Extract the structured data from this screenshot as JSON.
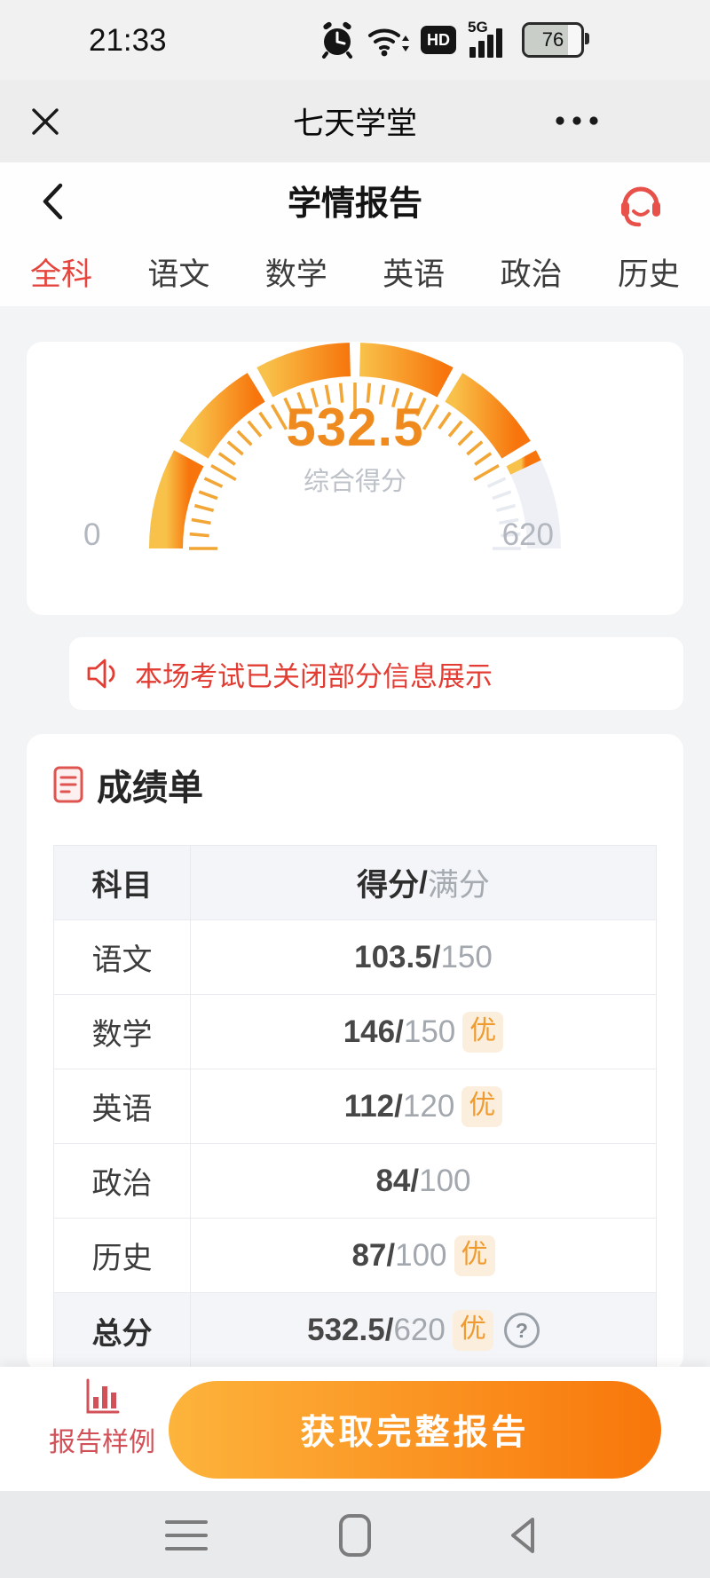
{
  "status_bar": {
    "time": "21:33",
    "hd": "HD",
    "network": "5G",
    "battery": "76"
  },
  "wechat_bar": {
    "title": "七天学堂"
  },
  "app_header": {
    "title": "学情报告"
  },
  "tabs": {
    "items": [
      {
        "label": "全科",
        "active": true
      },
      {
        "label": "语文",
        "active": false
      },
      {
        "label": "数学",
        "active": false
      },
      {
        "label": "英语",
        "active": false
      },
      {
        "label": "政治",
        "active": false
      },
      {
        "label": "历史",
        "active": false
      }
    ]
  },
  "chart_data": {
    "type": "gauge",
    "value": 532.5,
    "min": 0,
    "max": 620,
    "label": "综合得分",
    "segments": 6,
    "start_angle": 180,
    "end_angle": 360,
    "filled_colors": [
      "#f8c24a",
      "#f7750c"
    ],
    "track_color": "#eef0f5",
    "tick_color_filled": "#f2a636",
    "tick_color_empty": "#e7eaf0"
  },
  "notice": {
    "text": "本场考试已关闭部分信息展示"
  },
  "report_card": {
    "title": "成绩单",
    "sep": "/",
    "header": {
      "subject": "科目",
      "score": "得分",
      "full": "满分"
    },
    "rows": [
      {
        "subject": "语文",
        "score": "103.5",
        "full": "150",
        "grade": ""
      },
      {
        "subject": "数学",
        "score": "146",
        "full": "150",
        "grade": "优"
      },
      {
        "subject": "英语",
        "score": "112",
        "full": "120",
        "grade": "优"
      },
      {
        "subject": "政治",
        "score": "84",
        "full": "100",
        "grade": ""
      },
      {
        "subject": "历史",
        "score": "87",
        "full": "100",
        "grade": "优"
      },
      {
        "subject": "总分",
        "score": "532.5",
        "full": "620",
        "grade": "优",
        "help": "?"
      }
    ]
  },
  "footer": {
    "sample_label": "报告样例",
    "cta_label": "获取完整报告"
  },
  "colors": {
    "accent_red": "#e5453d",
    "accent_orange": "#f8760a",
    "badge_text": "#f09b30"
  }
}
